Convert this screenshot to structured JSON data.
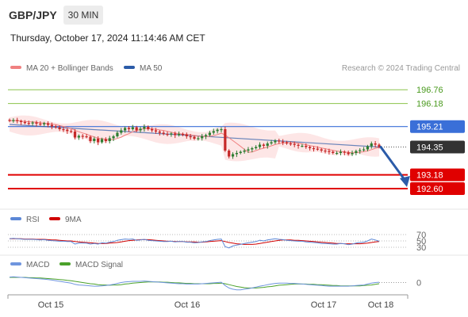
{
  "header": {
    "pair": "GBP/JPY",
    "timeframe": "30 MIN",
    "datetime": "Thursday, October 17, 2024 11:14:46 AM CET"
  },
  "legend": {
    "ma20": "MA 20 + Bollinger Bands",
    "ma50": "MA 50",
    "credit": "Research © 2024 Trading Central",
    "rsi": "RSI",
    "rsi_ma": "9MA",
    "macd": "MACD",
    "macd_signal": "MACD Signal"
  },
  "colors": {
    "ma20": "#f08080",
    "ma50": "#2b5ba8",
    "bands_fill": "#fde2e2",
    "resistance_green": "#8bc34a",
    "resistance_blue": "#3a6fd8",
    "support_red": "#e00000",
    "price_tag": "#333333",
    "rsi": "#5b87d6",
    "rsi_ma": "#d00000",
    "macd": "#6f95de",
    "macd_signal": "#4aa12a",
    "bull": "#2e7d32",
    "bear": "#c62828"
  },
  "chart_data": [
    {
      "type": "candlestick",
      "title": "GBP/JPY",
      "y_unit": "JPY",
      "ylim": [
        191.8,
        197.3
      ],
      "x_ticks": [
        "Oct 15",
        "Oct 16",
        "Oct 17",
        "Oct 18"
      ],
      "current_price": 194.35,
      "levels": [
        {
          "label": "196.76",
          "value": 196.76,
          "kind": "resistance",
          "color": "#8bc34a"
        },
        {
          "label": "196.18",
          "value": 196.18,
          "kind": "resistance",
          "color": "#8bc34a"
        },
        {
          "label": "195.21",
          "value": 195.21,
          "kind": "pivot",
          "color": "#3a6fd8"
        },
        {
          "label": "194.35",
          "value": 194.35,
          "kind": "last",
          "color": "#333333"
        },
        {
          "label": "193.18",
          "value": 193.18,
          "kind": "support",
          "color": "#e00000"
        },
        {
          "label": "192.60",
          "value": 192.6,
          "kind": "support",
          "color": "#e00000"
        }
      ],
      "forecast_arrow": {
        "from": 194.35,
        "to": 192.6,
        "direction": "down"
      },
      "close": [
        195.45,
        195.48,
        195.44,
        195.4,
        195.36,
        195.35,
        195.38,
        195.33,
        195.3,
        195.35,
        195.28,
        195.22,
        195.18,
        195.1,
        195.08,
        195.02,
        195.0,
        194.75,
        194.82,
        194.8,
        194.78,
        194.6,
        194.7,
        194.55,
        194.68,
        194.6,
        194.72,
        194.8,
        194.95,
        195.05,
        195.15,
        195.1,
        195.18,
        195.05,
        195.12,
        195.2,
        195.1,
        195.05,
        195.0,
        194.95,
        194.9,
        194.88,
        194.92,
        194.85,
        194.9,
        194.88,
        194.8,
        194.78,
        194.7,
        194.72,
        194.8,
        194.85,
        194.95,
        195.02,
        195.08,
        195.1,
        194.2,
        193.95,
        194.05,
        194.1,
        194.15,
        194.2,
        194.25,
        194.3,
        194.35,
        194.45,
        194.4,
        194.5,
        194.55,
        194.62,
        194.58,
        194.55,
        194.5,
        194.48,
        194.44,
        194.4,
        194.4,
        194.35,
        194.3,
        194.28,
        194.25,
        194.2,
        194.18,
        194.15,
        194.1,
        194.1,
        194.15,
        194.12,
        194.05,
        194.1,
        194.18,
        194.22,
        194.25,
        194.38,
        194.5,
        194.45,
        194.35
      ],
      "ma50": [
        195.3,
        194.35
      ],
      "bollinger": {
        "upper_start": 195.6,
        "upper_end": 194.62,
        "lower_start": 195.0,
        "lower_end": 194.05
      }
    },
    {
      "type": "line",
      "title": "RSI",
      "ylim": [
        20,
        80
      ],
      "y_ticks": [
        "70",
        "50",
        "30"
      ],
      "series": [
        {
          "name": "RSI",
          "values": [
            57,
            58,
            57,
            56,
            55,
            55,
            55,
            54,
            53,
            54,
            52,
            51,
            50,
            49,
            49,
            48,
            48,
            40,
            43,
            43,
            43,
            40,
            42,
            40,
            44,
            43,
            46,
            48,
            52,
            54,
            56,
            55,
            56,
            52,
            53,
            55,
            52,
            51,
            50,
            49,
            48,
            48,
            49,
            47,
            48,
            48,
            46,
            46,
            44,
            45,
            47,
            48,
            51,
            53,
            55,
            56,
            32,
            28,
            34,
            37,
            39,
            42,
            44,
            46,
            48,
            52,
            50,
            53,
            55,
            57,
            55,
            54,
            52,
            51,
            50,
            49,
            49,
            47,
            46,
            45,
            44,
            42,
            42,
            41,
            40,
            40,
            42,
            41,
            38,
            40,
            43,
            45,
            46,
            50,
            56,
            53,
            49
          ]
        },
        {
          "name": "9MA",
          "values": [
            57,
            57,
            57,
            57,
            56,
            56,
            56,
            55,
            55,
            55,
            54,
            53,
            53,
            52,
            51,
            50,
            50,
            48,
            47,
            46,
            45,
            44,
            43,
            42,
            42,
            42,
            43,
            44,
            45,
            47,
            49,
            51,
            52,
            53,
            54,
            54,
            54,
            53,
            52,
            51,
            50,
            49,
            49,
            48,
            48,
            48,
            47,
            47,
            47,
            46,
            46,
            47,
            48,
            49,
            50,
            51,
            48,
            45,
            43,
            41,
            40,
            39,
            39,
            39,
            40,
            42,
            44,
            46,
            48,
            50,
            52,
            53,
            53,
            53,
            52,
            52,
            51,
            50,
            49,
            48,
            47,
            46,
            45,
            44,
            43,
            42,
            42,
            41,
            41,
            41,
            41,
            41,
            42,
            43,
            45,
            47,
            48
          ]
        }
      ]
    },
    {
      "type": "line",
      "title": "MACD",
      "y_ticks": [
        "0"
      ],
      "ylim": [
        -0.3,
        0.3
      ],
      "series": [
        {
          "name": "MACD",
          "values": [
            0.18,
            0.19,
            0.18,
            0.17,
            0.16,
            0.15,
            0.14,
            0.13,
            0.12,
            0.11,
            0.1,
            0.08,
            0.06,
            0.04,
            0.02,
            0.0,
            -0.02,
            -0.06,
            -0.08,
            -0.09,
            -0.1,
            -0.11,
            -0.12,
            -0.12,
            -0.11,
            -0.1,
            -0.08,
            -0.06,
            -0.03,
            0.0,
            0.02,
            0.03,
            0.04,
            0.04,
            0.04,
            0.05,
            0.04,
            0.03,
            0.02,
            0.01,
            0.0,
            -0.01,
            -0.02,
            -0.03,
            -0.04,
            -0.04,
            -0.05,
            -0.05,
            -0.05,
            -0.05,
            -0.04,
            -0.03,
            -0.02,
            -0.01,
            0.0,
            0.01,
            -0.1,
            -0.18,
            -0.22,
            -0.24,
            -0.24,
            -0.22,
            -0.2,
            -0.18,
            -0.15,
            -0.12,
            -0.1,
            -0.07,
            -0.05,
            -0.03,
            -0.02,
            -0.02,
            -0.02,
            -0.03,
            -0.03,
            -0.04,
            -0.05,
            -0.06,
            -0.07,
            -0.08,
            -0.09,
            -0.1,
            -0.11,
            -0.12,
            -0.12,
            -0.12,
            -0.12,
            -0.12,
            -0.12,
            -0.11,
            -0.1,
            -0.09,
            -0.08,
            -0.05,
            -0.02,
            0.0,
            0.01
          ]
        },
        {
          "name": "MACD Signal",
          "values": [
            0.17,
            0.17,
            0.17,
            0.17,
            0.17,
            0.16,
            0.16,
            0.15,
            0.15,
            0.14,
            0.13,
            0.12,
            0.11,
            0.1,
            0.09,
            0.07,
            0.06,
            0.04,
            0.02,
            0.0,
            -0.02,
            -0.04,
            -0.05,
            -0.07,
            -0.08,
            -0.08,
            -0.09,
            -0.08,
            -0.08,
            -0.07,
            -0.05,
            -0.04,
            -0.02,
            -0.01,
            0.0,
            0.01,
            0.02,
            0.02,
            0.02,
            0.02,
            0.01,
            0.01,
            0.0,
            -0.01,
            -0.01,
            -0.02,
            -0.03,
            -0.03,
            -0.04,
            -0.04,
            -0.04,
            -0.04,
            -0.04,
            -0.03,
            -0.03,
            -0.02,
            -0.04,
            -0.07,
            -0.1,
            -0.13,
            -0.15,
            -0.17,
            -0.18,
            -0.18,
            -0.18,
            -0.17,
            -0.16,
            -0.14,
            -0.13,
            -0.11,
            -0.09,
            -0.08,
            -0.07,
            -0.06,
            -0.05,
            -0.05,
            -0.05,
            -0.05,
            -0.06,
            -0.06,
            -0.07,
            -0.07,
            -0.08,
            -0.09,
            -0.1,
            -0.1,
            -0.11,
            -0.11,
            -0.11,
            -0.11,
            -0.11,
            -0.11,
            -0.1,
            -0.09,
            -0.08,
            -0.06,
            -0.04
          ]
        }
      ]
    }
  ]
}
